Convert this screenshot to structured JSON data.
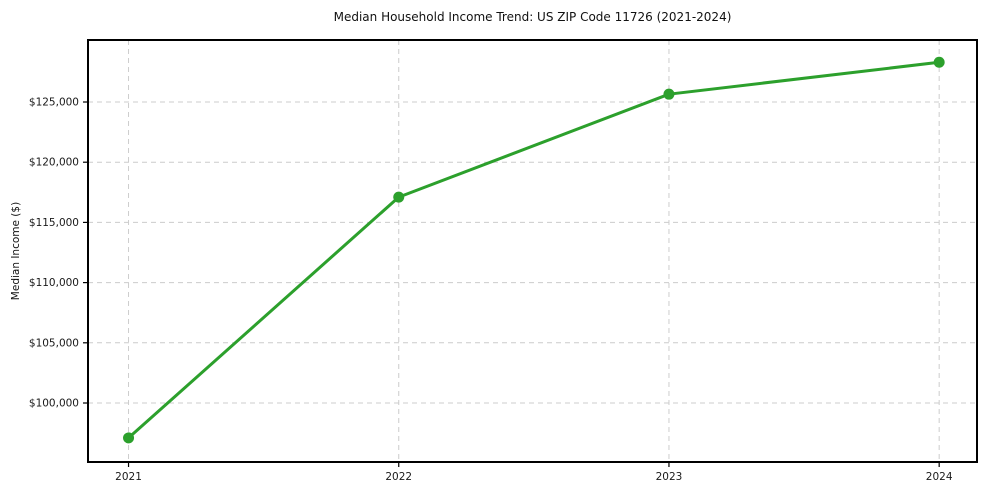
{
  "chart_data": {
    "type": "line",
    "title": "Median Household Income Trend: US ZIP Code 11726 (2021-2024)",
    "xlabel": "",
    "ylabel": "Median Income ($)",
    "x": [
      2021,
      2022,
      2023,
      2024
    ],
    "series": [
      {
        "name": "Median Household Income",
        "values": [
          97100,
          117100,
          125650,
          128300
        ]
      }
    ],
    "line_color": "#2ca02c",
    "marker_style": "circle",
    "marker_radius": 5.5,
    "grid": "dashed-both-axes",
    "legend": "none",
    "xlim": [
      2020.85,
      2024.14
    ],
    "ylim": [
      95100,
      130150
    ],
    "xticks": [
      {
        "value": 2021,
        "label": "2021"
      },
      {
        "value": 2022,
        "label": "2022"
      },
      {
        "value": 2023,
        "label": "2023"
      },
      {
        "value": 2024,
        "label": "2024"
      }
    ],
    "yticks": [
      {
        "value": 100000,
        "label": "$100,000"
      },
      {
        "value": 105000,
        "label": "$105,000"
      },
      {
        "value": 110000,
        "label": "$110,000"
      },
      {
        "value": 115000,
        "label": "$115,000"
      },
      {
        "value": 120000,
        "label": "$120,000"
      },
      {
        "value": 125000,
        "label": "$125,000"
      }
    ]
  }
}
